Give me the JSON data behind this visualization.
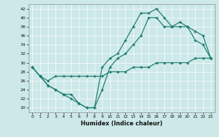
{
  "xlabel": "Humidex (Indice chaleur)",
  "xlim": [
    -0.5,
    23.5
  ],
  "ylim": [
    19,
    43
  ],
  "yticks": [
    20,
    22,
    24,
    26,
    28,
    30,
    32,
    34,
    36,
    38,
    40,
    42
  ],
  "xticks": [
    0,
    1,
    2,
    3,
    4,
    5,
    6,
    7,
    8,
    9,
    10,
    11,
    12,
    13,
    14,
    15,
    16,
    17,
    18,
    19,
    20,
    21,
    22,
    23
  ],
  "bg_color": "#cce8e8",
  "line_color": "#1a7a6e",
  "grid_color": "#b0d8d8",
  "series": [
    {
      "x": [
        0,
        1,
        2,
        3,
        4,
        5,
        6,
        7,
        8,
        9,
        10,
        11,
        12,
        13,
        14,
        15,
        16,
        17,
        18,
        19,
        20,
        21,
        22,
        23
      ],
      "y": [
        29,
        27,
        25,
        24,
        23,
        23,
        21,
        20,
        20,
        29,
        31,
        32,
        35,
        38,
        41,
        41,
        42,
        40,
        38,
        38,
        38,
        37,
        36,
        31
      ]
    },
    {
      "x": [
        0,
        1,
        2,
        3,
        4,
        5,
        6,
        7,
        8,
        9,
        10,
        11,
        12,
        13,
        14,
        15,
        16,
        17,
        18,
        19,
        20,
        21,
        22,
        23
      ],
      "y": [
        29,
        27,
        25,
        24,
        23,
        22,
        21,
        20,
        20,
        24,
        29,
        31,
        32,
        34,
        36,
        40,
        40,
        38,
        38,
        39,
        38,
        35,
        34,
        31
      ]
    },
    {
      "x": [
        0,
        1,
        2,
        3,
        4,
        5,
        6,
        7,
        8,
        9,
        10,
        11,
        12,
        13,
        14,
        15,
        16,
        17,
        18,
        19,
        20,
        21,
        22,
        23
      ],
      "y": [
        29,
        27,
        26,
        27,
        27,
        27,
        27,
        27,
        27,
        27,
        28,
        28,
        28,
        29,
        29,
        29,
        30,
        30,
        30,
        30,
        30,
        31,
        31,
        31
      ]
    }
  ]
}
